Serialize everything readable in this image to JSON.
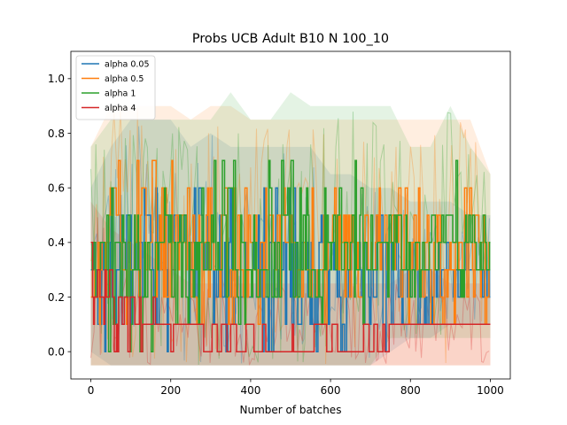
{
  "chart_data": {
    "type": "line",
    "title": "Probs UCB Adult B10 N 100_10",
    "xlabel": "Number of batches",
    "ylabel": "",
    "xlim": [
      -50,
      1050
    ],
    "ylim": [
      -0.1,
      1.1
    ],
    "xticks": [
      0,
      200,
      400,
      600,
      800,
      1000
    ],
    "xtick_labels": [
      "0",
      "200",
      "400",
      "600",
      "800",
      "1000"
    ],
    "yticks": [
      0.0,
      0.2,
      0.4,
      0.6,
      0.8,
      1.0
    ],
    "ytick_labels": [
      "0.0",
      "0.2",
      "0.4",
      "0.6",
      "0.8",
      "1.0"
    ],
    "grid": false,
    "legend_position": "top-left",
    "series": [
      {
        "name": "alpha 0.05",
        "color": "#1f77b4",
        "x": [
          0,
          50,
          100,
          150,
          200,
          250,
          300,
          350,
          400,
          450,
          500,
          550,
          600,
          650,
          700,
          750,
          800,
          850,
          900,
          950,
          1000
        ],
        "mean": [
          0.25,
          0.3,
          0.35,
          0.35,
          0.35,
          0.3,
          0.35,
          0.3,
          0.3,
          0.3,
          0.25,
          0.3,
          0.3,
          0.3,
          0.3,
          0.3,
          0.3,
          0.3,
          0.3,
          0.3,
          0.3
        ],
        "min": [
          0.1,
          0.0,
          0.0,
          0.0,
          0.0,
          0.0,
          0.0,
          0.0,
          0.0,
          0.0,
          0.0,
          0.0,
          0.0,
          0.0,
          0.0,
          0.0,
          0.1,
          0.1,
          0.2,
          0.2,
          0.2
        ],
        "max": [
          0.5,
          0.6,
          0.7,
          0.7,
          0.7,
          0.6,
          0.7,
          0.6,
          0.6,
          0.6,
          0.6,
          0.6,
          0.5,
          0.5,
          0.5,
          0.5,
          0.4,
          0.4,
          0.4,
          0.4,
          0.3
        ],
        "band_low": [
          0.0,
          -0.05,
          -0.05,
          -0.05,
          -0.05,
          -0.05,
          -0.05,
          -0.05,
          -0.05,
          -0.05,
          -0.05,
          -0.05,
          -0.05,
          -0.05,
          -0.05,
          0.0,
          0.05,
          0.05,
          0.1,
          0.1,
          0.1
        ],
        "band_high": [
          0.6,
          0.75,
          0.85,
          0.85,
          0.85,
          0.75,
          0.8,
          0.75,
          0.75,
          0.75,
          0.75,
          0.75,
          0.65,
          0.65,
          0.6,
          0.6,
          0.55,
          0.55,
          0.55,
          0.5,
          0.5
        ]
      },
      {
        "name": "alpha 0.5",
        "color": "#ff7f0e",
        "x": [
          0,
          50,
          100,
          150,
          200,
          250,
          300,
          350,
          400,
          450,
          500,
          550,
          600,
          650,
          700,
          750,
          800,
          850,
          900,
          950,
          1000
        ],
        "mean": [
          0.3,
          0.4,
          0.4,
          0.4,
          0.4,
          0.35,
          0.4,
          0.4,
          0.35,
          0.35,
          0.35,
          0.35,
          0.35,
          0.35,
          0.3,
          0.35,
          0.35,
          0.3,
          0.3,
          0.3,
          0.3
        ],
        "min": [
          0.1,
          0.1,
          0.1,
          0.1,
          0.1,
          0.1,
          0.1,
          0.1,
          0.1,
          0.1,
          0.1,
          0.1,
          0.1,
          0.1,
          0.1,
          0.1,
          0.1,
          0.1,
          0.1,
          0.1,
          0.1
        ],
        "max": [
          0.6,
          0.7,
          0.7,
          0.7,
          0.7,
          0.6,
          0.7,
          0.7,
          0.6,
          0.6,
          0.6,
          0.6,
          0.6,
          0.6,
          0.6,
          0.6,
          0.6,
          0.6,
          0.6,
          0.6,
          0.5
        ],
        "band_low": [
          -0.05,
          -0.05,
          -0.05,
          -0.05,
          -0.05,
          -0.05,
          -0.05,
          -0.05,
          -0.05,
          -0.05,
          -0.05,
          -0.05,
          -0.05,
          -0.05,
          -0.05,
          -0.05,
          -0.05,
          -0.05,
          -0.05,
          -0.05,
          -0.05
        ],
        "band_high": [
          0.75,
          0.9,
          0.9,
          0.9,
          0.9,
          0.85,
          0.9,
          0.9,
          0.85,
          0.85,
          0.85,
          0.85,
          0.85,
          0.85,
          0.85,
          0.85,
          0.85,
          0.85,
          0.85,
          0.85,
          0.65
        ]
      },
      {
        "name": "alpha 1",
        "color": "#2ca02c",
        "x": [
          0,
          50,
          100,
          150,
          200,
          250,
          300,
          350,
          400,
          450,
          500,
          550,
          600,
          650,
          700,
          750,
          800,
          850,
          900,
          950,
          1000
        ],
        "mean": [
          0.3,
          0.35,
          0.35,
          0.35,
          0.35,
          0.35,
          0.35,
          0.4,
          0.35,
          0.35,
          0.4,
          0.35,
          0.35,
          0.35,
          0.35,
          0.4,
          0.35,
          0.35,
          0.4,
          0.35,
          0.3
        ],
        "min": [
          0.1,
          0.0,
          0.0,
          0.0,
          0.0,
          0.1,
          0.1,
          0.1,
          0.1,
          0.1,
          0.1,
          0.1,
          0.1,
          0.1,
          0.1,
          0.2,
          0.2,
          0.2,
          0.2,
          0.2,
          0.2
        ],
        "max": [
          0.5,
          0.6,
          0.6,
          0.6,
          0.6,
          0.6,
          0.7,
          0.8,
          0.7,
          0.7,
          0.8,
          0.7,
          0.7,
          0.7,
          0.7,
          0.7,
          0.6,
          0.6,
          0.7,
          0.6,
          0.4
        ],
        "band_low": [
          -0.05,
          -0.05,
          -0.05,
          -0.05,
          -0.05,
          -0.05,
          -0.05,
          -0.05,
          -0.05,
          -0.05,
          -0.05,
          -0.05,
          -0.05,
          -0.05,
          -0.05,
          0.05,
          0.05,
          0.05,
          0.05,
          0.05,
          0.05
        ],
        "band_high": [
          0.75,
          0.85,
          0.85,
          0.85,
          0.85,
          0.85,
          0.85,
          0.95,
          0.85,
          0.85,
          0.95,
          0.9,
          0.9,
          0.9,
          0.9,
          0.9,
          0.75,
          0.75,
          0.9,
          0.75,
          0.65
        ]
      },
      {
        "name": "alpha 4",
        "color": "#d62728",
        "x": [
          0,
          50,
          100,
          150,
          200,
          250,
          300,
          350,
          400,
          450,
          500,
          550,
          600,
          650,
          700,
          750,
          800,
          850,
          900,
          950,
          1000
        ],
        "mean": [
          0.25,
          0.2,
          0.15,
          0.1,
          0.1,
          0.05,
          0.05,
          0.05,
          0.05,
          0.05,
          0.05,
          0.05,
          0.05,
          0.05,
          0.05,
          0.05,
          0.1,
          0.1,
          0.1,
          0.1,
          0.1
        ],
        "min": [
          0.1,
          0.0,
          0.0,
          0.0,
          0.0,
          0.0,
          0.0,
          0.0,
          0.0,
          0.0,
          0.0,
          0.0,
          0.0,
          0.0,
          0.0,
          0.0,
          0.1,
          0.1,
          0.1,
          0.1,
          0.1
        ],
        "max": [
          0.5,
          0.3,
          0.3,
          0.2,
          0.2,
          0.1,
          0.1,
          0.1,
          0.1,
          0.1,
          0.1,
          0.1,
          0.1,
          0.1,
          0.1,
          0.1,
          0.1,
          0.1,
          0.1,
          0.1,
          0.1
        ],
        "band_low": [
          -0.05,
          -0.05,
          -0.05,
          -0.05,
          -0.05,
          -0.05,
          -0.05,
          -0.05,
          -0.05,
          -0.05,
          -0.05,
          -0.05,
          -0.05,
          -0.05,
          -0.05,
          -0.05,
          -0.05,
          -0.05,
          -0.05,
          -0.05,
          -0.05
        ],
        "band_high": [
          0.55,
          0.45,
          0.4,
          0.35,
          0.3,
          0.25,
          0.25,
          0.25,
          0.25,
          0.25,
          0.25,
          0.25,
          0.25,
          0.25,
          0.25,
          0.25,
          0.3,
          0.3,
          0.25,
          0.25,
          0.25
        ]
      }
    ]
  }
}
